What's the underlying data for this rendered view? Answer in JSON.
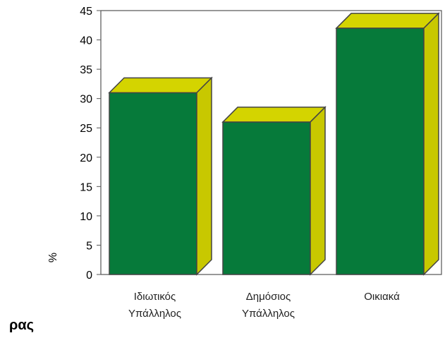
{
  "chart_data": {
    "type": "bar",
    "style": "3d",
    "categories": [
      [
        "Ιδιωτικός",
        "Υπάλληλος"
      ],
      [
        "Δημόσιος",
        "Υπάλληλος"
      ],
      [
        "Οικιακά"
      ]
    ],
    "values": [
      31,
      26,
      42
    ],
    "yticks": [
      0,
      5,
      10,
      15,
      20,
      25,
      30,
      35,
      40,
      45
    ],
    "ylabel": "%",
    "xlabel": "",
    "title": "",
    "ylim": [
      0,
      45
    ],
    "grid": false,
    "legend": "none",
    "colors": {
      "front": "#067a3a",
      "top": "#d4d400",
      "side": "#c8c800",
      "outline": "#444444"
    }
  },
  "fragment_text": "ρας"
}
